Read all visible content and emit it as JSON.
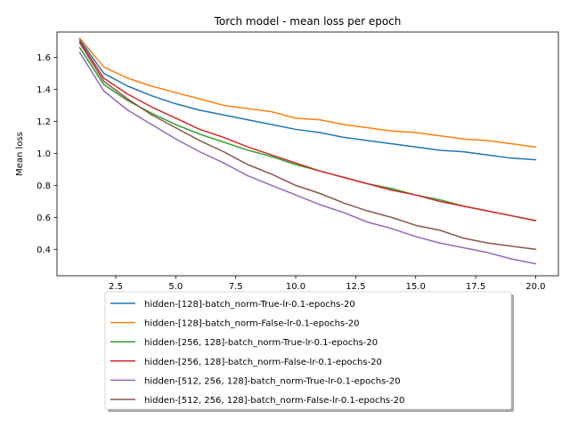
{
  "chart_data": {
    "type": "line",
    "title": "Torch model - mean loss per epoch",
    "xlabel": "",
    "ylabel": "Mean loss",
    "xlim": [
      0.05,
      20.95
    ],
    "ylim": [
      0.235,
      1.7585
    ],
    "xticks": [
      2.5,
      5.0,
      7.5,
      10.0,
      12.5,
      15.0,
      17.5,
      20.0
    ],
    "xtick_labels": [
      "2.5",
      "5.0",
      "7.5",
      "10.0",
      "12.5",
      "15.0",
      "17.5",
      "20.0"
    ],
    "yticks": [
      0.4,
      0.6,
      0.8,
      1.0,
      1.2,
      1.4,
      1.6
    ],
    "ytick_labels": [
      "0.4",
      "0.6",
      "0.8",
      "1.0",
      "1.2",
      "1.4",
      "1.6"
    ],
    "grid": false,
    "legend_position": "below plot",
    "x": [
      1,
      2,
      3,
      4,
      5,
      6,
      7,
      8,
      9,
      10,
      11,
      12,
      13,
      14,
      15,
      16,
      17,
      18,
      19,
      20
    ],
    "series": [
      {
        "name": "hidden-[128]-batch_norm-True-lr-0.1-epochs-20",
        "color": "#1f77b4",
        "values": [
          1.71,
          1.5,
          1.42,
          1.36,
          1.31,
          1.27,
          1.24,
          1.21,
          1.18,
          1.15,
          1.13,
          1.1,
          1.08,
          1.06,
          1.04,
          1.02,
          1.01,
          0.99,
          0.97,
          0.96
        ]
      },
      {
        "name": "hidden-[128]-batch_norm-False-lr-0.1-epochs-20",
        "color": "#ff7f0e",
        "values": [
          1.72,
          1.54,
          1.47,
          1.42,
          1.38,
          1.34,
          1.3,
          1.28,
          1.26,
          1.22,
          1.21,
          1.18,
          1.16,
          1.14,
          1.13,
          1.11,
          1.09,
          1.08,
          1.06,
          1.04
        ]
      },
      {
        "name": "hidden-[256, 128]-batch_norm-True-lr-0.1-epochs-20",
        "color": "#2ca02c",
        "values": [
          1.66,
          1.43,
          1.33,
          1.25,
          1.18,
          1.12,
          1.07,
          1.02,
          0.98,
          0.93,
          0.89,
          0.85,
          0.81,
          0.78,
          0.74,
          0.71,
          0.67,
          0.64,
          0.61,
          0.58
        ]
      },
      {
        "name": "hidden-[256, 128]-batch_norm-False-lr-0.1-epochs-20",
        "color": "#d62728",
        "values": [
          1.7,
          1.47,
          1.37,
          1.29,
          1.22,
          1.15,
          1.1,
          1.04,
          0.99,
          0.94,
          0.89,
          0.85,
          0.81,
          0.77,
          0.74,
          0.7,
          0.67,
          0.64,
          0.61,
          0.58
        ]
      },
      {
        "name": "hidden-[512, 256, 128]-batch_norm-True-lr-0.1-epochs-20",
        "color": "#9467bd",
        "values": [
          1.63,
          1.39,
          1.27,
          1.18,
          1.09,
          1.01,
          0.94,
          0.86,
          0.8,
          0.74,
          0.68,
          0.63,
          0.57,
          0.53,
          0.48,
          0.44,
          0.41,
          0.38,
          0.34,
          0.31
        ]
      },
      {
        "name": "hidden-[512, 256, 128]-batch_norm-False-lr-0.1-epochs-20",
        "color": "#8c564b",
        "values": [
          1.69,
          1.45,
          1.34,
          1.24,
          1.16,
          1.08,
          1.01,
          0.93,
          0.87,
          0.8,
          0.75,
          0.69,
          0.64,
          0.6,
          0.55,
          0.52,
          0.47,
          0.44,
          0.42,
          0.4
        ]
      }
    ]
  }
}
